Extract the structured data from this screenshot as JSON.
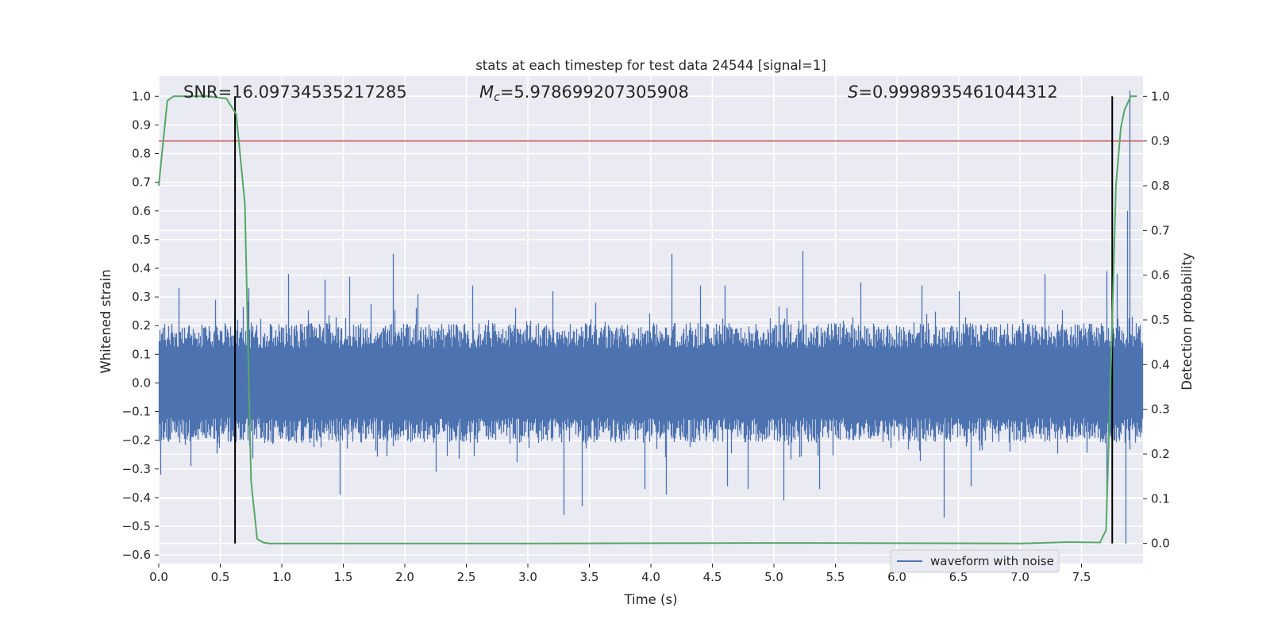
{
  "chart_data": {
    "type": "line",
    "title": "stats at each timestep for test data 24544 [signal=1]",
    "xlabel": "Time (s)",
    "ylabel": "Whitened strain",
    "y2label": "Detection probability",
    "xlim": [
      0.0,
      8.0
    ],
    "ylim": [
      -0.63,
      1.07
    ],
    "y2lim": [
      -0.045,
      1.045
    ],
    "x_ticks": [
      0.0,
      0.5,
      1.0,
      1.5,
      2.0,
      2.5,
      3.0,
      3.5,
      4.0,
      4.5,
      5.0,
      5.5,
      6.0,
      6.5,
      7.0,
      7.5
    ],
    "x_tick_labels": [
      "0.0",
      "0.5",
      "1.0",
      "1.5",
      "2.0",
      "2.5",
      "3.0",
      "3.5",
      "4.0",
      "4.5",
      "5.0",
      "5.5",
      "6.0",
      "6.5",
      "7.0",
      "7.5"
    ],
    "y_ticks": [
      -0.6,
      -0.5,
      -0.4,
      -0.3,
      -0.2,
      -0.1,
      0.0,
      0.1,
      0.2,
      0.3,
      0.4,
      0.5,
      0.6,
      0.7,
      0.8,
      0.9,
      1.0
    ],
    "y_tick_labels": [
      "−0.6",
      "−0.5",
      "−0.4",
      "−0.3",
      "−0.2",
      "−0.1",
      "0.0",
      "0.1",
      "0.2",
      "0.3",
      "0.4",
      "0.5",
      "0.6",
      "0.7",
      "0.8",
      "0.9",
      "1.0"
    ],
    "y2_ticks": [
      0.0,
      0.1,
      0.2,
      0.3,
      0.4,
      0.5,
      0.6,
      0.7,
      0.8,
      0.9,
      1.0
    ],
    "y2_tick_labels": [
      "0.0",
      "0.1",
      "0.2",
      "0.3",
      "0.4",
      "0.5",
      "0.6",
      "0.7",
      "0.8",
      "0.9",
      "1.0"
    ],
    "grid": true,
    "annotations": {
      "snr": "SNR=16.09734535217285",
      "mc_symbol": "M",
      "mc_sub": "c",
      "mc_value": "=5.978699207305908",
      "s_symbol": "S",
      "s_value": "=0.9998935461044312"
    },
    "legend": {
      "position": "lower-right",
      "entries": [
        "waveform with noise"
      ]
    },
    "waveform": {
      "name": "waveform with noise",
      "color": "#4c72b0",
      "t_start": 0.0,
      "t_end": 8.0,
      "typical_range": [
        -0.22,
        0.22
      ],
      "peaks": [
        {
          "t": 0.16,
          "v": 0.33
        },
        {
          "t": 0.46,
          "v": 0.29
        },
        {
          "t": 0.73,
          "v": 0.33
        },
        {
          "t": 1.05,
          "v": 0.38
        },
        {
          "t": 1.35,
          "v": 0.36
        },
        {
          "t": 1.55,
          "v": 0.37
        },
        {
          "t": 1.9,
          "v": 0.45
        },
        {
          "t": 2.1,
          "v": 0.31
        },
        {
          "t": 2.55,
          "v": 0.34
        },
        {
          "t": 3.2,
          "v": 0.32
        },
        {
          "t": 3.55,
          "v": 0.28
        },
        {
          "t": 4.17,
          "v": 0.45
        },
        {
          "t": 4.4,
          "v": 0.34
        },
        {
          "t": 4.6,
          "v": 0.34
        },
        {
          "t": 5.23,
          "v": 0.46
        },
        {
          "t": 5.7,
          "v": 0.35
        },
        {
          "t": 6.2,
          "v": 0.34
        },
        {
          "t": 6.5,
          "v": 0.32
        },
        {
          "t": 7.2,
          "v": 0.38
        },
        {
          "t": 7.7,
          "v": 0.39
        },
        {
          "t": 7.79,
          "v": 0.38
        },
        {
          "t": 7.87,
          "v": 0.6
        },
        {
          "t": 7.89,
          "v": 1.02
        }
      ],
      "troughs": [
        {
          "t": 0.01,
          "v": -0.32
        },
        {
          "t": 0.26,
          "v": -0.29
        },
        {
          "t": 1.47,
          "v": -0.39
        },
        {
          "t": 2.25,
          "v": -0.31
        },
        {
          "t": 3.29,
          "v": -0.46
        },
        {
          "t": 3.44,
          "v": -0.43
        },
        {
          "t": 3.95,
          "v": -0.37
        },
        {
          "t": 4.12,
          "v": -0.39
        },
        {
          "t": 4.62,
          "v": -0.36
        },
        {
          "t": 4.79,
          "v": -0.37
        },
        {
          "t": 5.08,
          "v": -0.41
        },
        {
          "t": 5.37,
          "v": -0.37
        },
        {
          "t": 6.38,
          "v": -0.47
        },
        {
          "t": 6.6,
          "v": -0.36
        },
        {
          "t": 7.7,
          "v": -0.39
        },
        {
          "t": 7.86,
          "v": -0.56
        }
      ]
    },
    "probability": {
      "color": "#55a868",
      "x": [
        0.0,
        0.07,
        0.12,
        0.2,
        0.4,
        0.55,
        0.63,
        0.7,
        0.75,
        0.8,
        0.85,
        0.9,
        1.0,
        3.0,
        5.0,
        7.0,
        7.4,
        7.65,
        7.7,
        7.75,
        7.78,
        7.82,
        7.85,
        7.9,
        7.95
      ],
      "y": [
        0.8,
        0.99,
        1.0,
        1.0,
        1.0,
        0.995,
        0.96,
        0.76,
        0.14,
        0.01,
        0.002,
        0.0,
        0.0,
        0.0,
        0.001,
        0.0,
        0.003,
        0.002,
        0.03,
        0.5,
        0.8,
        0.93,
        0.97,
        1.0,
        1.0
      ]
    },
    "threshold": {
      "y2": 0.9,
      "color": "#c44e52"
    },
    "vertical_lines": [
      {
        "x": 0.62,
        "color": "#000000",
        "y2_range": [
          0.0,
          1.0
        ]
      },
      {
        "x": 7.75,
        "color": "#000000",
        "y2_range": [
          0.0,
          1.0
        ]
      }
    ]
  }
}
